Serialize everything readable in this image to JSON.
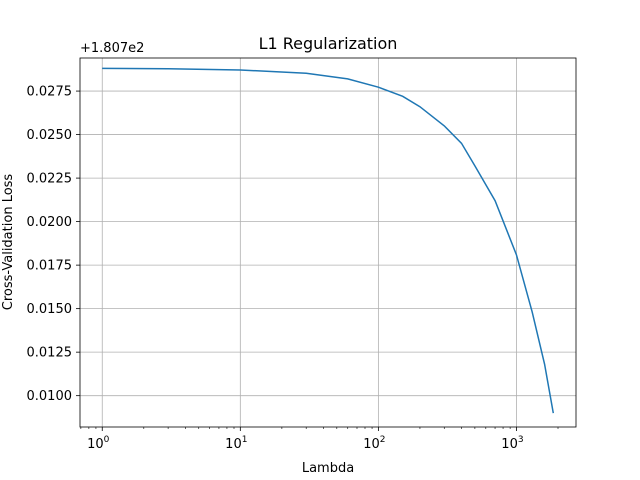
{
  "chart_data": {
    "type": "line",
    "title": "L1 Regularization",
    "xlabel": "Lambda",
    "ylabel": "Cross-Validation Loss",
    "offset_label": "+1.807e2",
    "x_scale": "log",
    "xlim": [
      0.69,
      2700
    ],
    "ylim": [
      0.0082,
      0.0294
    ],
    "grid": true,
    "line_color": "#1f77b4",
    "x_ticks": [
      {
        "value": 1,
        "base": "10",
        "exp": "0"
      },
      {
        "value": 10,
        "base": "10",
        "exp": "1"
      },
      {
        "value": 100,
        "base": "10",
        "exp": "2"
      },
      {
        "value": 1000,
        "base": "10",
        "exp": "3"
      }
    ],
    "y_ticks": [
      {
        "value": 0.01,
        "label": "0.0100"
      },
      {
        "value": 0.0125,
        "label": "0.0125"
      },
      {
        "value": 0.015,
        "label": "0.0150"
      },
      {
        "value": 0.0175,
        "label": "0.0175"
      },
      {
        "value": 0.02,
        "label": "0.0200"
      },
      {
        "value": 0.0225,
        "label": "0.0225"
      },
      {
        "value": 0.025,
        "label": "0.0250"
      },
      {
        "value": 0.0275,
        "label": "0.0275"
      }
    ],
    "series": [
      {
        "x": [
          1,
          3,
          10,
          30,
          60,
          100,
          150,
          200,
          300,
          400,
          500,
          700,
          1000,
          1300,
          1600,
          1850
        ],
        "y": [
          0.0288,
          0.02878,
          0.02871,
          0.02852,
          0.0282,
          0.02772,
          0.0272,
          0.0266,
          0.0255,
          0.0245,
          0.0232,
          0.0212,
          0.0181,
          0.0148,
          0.0118,
          0.009
        ]
      }
    ]
  }
}
